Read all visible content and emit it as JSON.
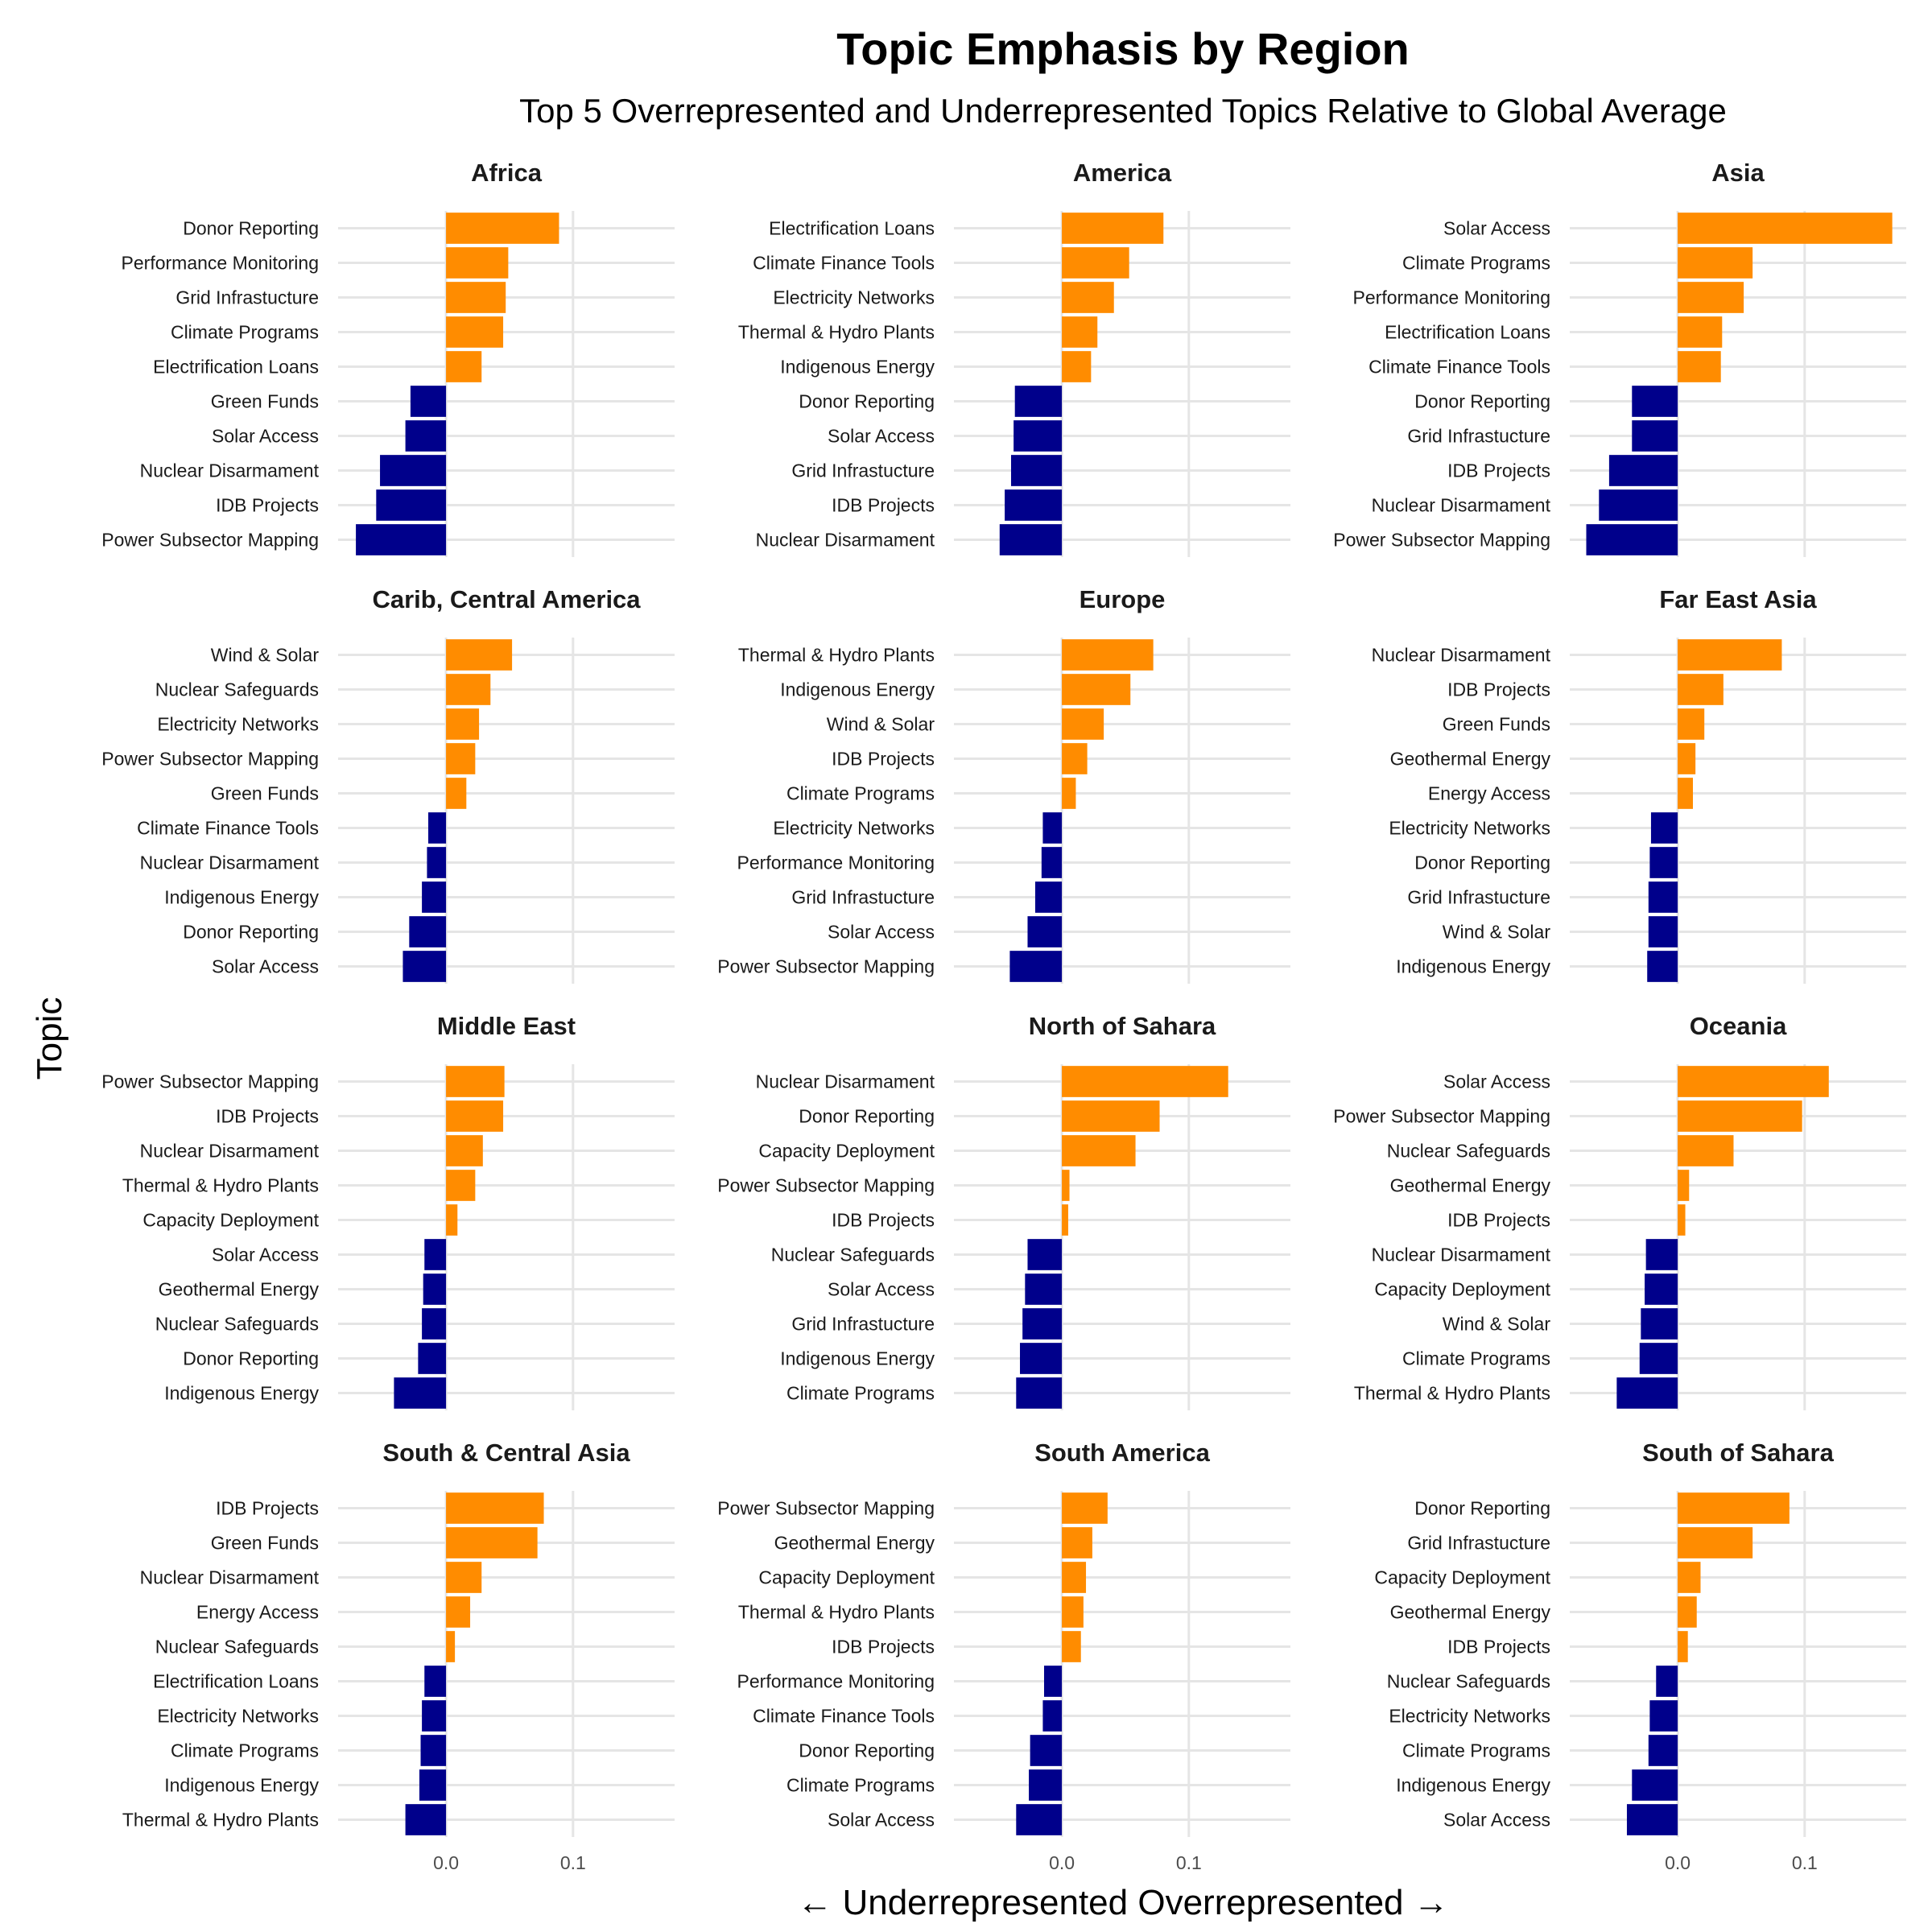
{
  "chart_data": {
    "type": "bar",
    "orientation": "horizontal",
    "title": "Topic Emphasis by Region",
    "subtitle": "Top 5 Overrepresented and Underrepresented Topics Relative to Global Average",
    "xlabel": "← Underrepresented Overrepresented →",
    "ylabel": "Topic",
    "xlim": [
      -0.085,
      0.18
    ],
    "xticks": [
      0.0,
      0.1
    ],
    "xtick_labels": [
      "0.0",
      "0.1"
    ],
    "grid": true,
    "colors": {
      "over": "#FF8C00",
      "under": "#00008B",
      "grid": "#E5E5E5"
    },
    "panels": [
      {
        "region": "Africa",
        "topics": [
          "Donor Reporting",
          "Performance Monitoring",
          "Grid Infrastucture",
          "Climate Programs",
          "Electrification Loans",
          "Green Funds",
          "Solar Access",
          "Nuclear Disarmament",
          "IDB Projects",
          "Power Subsector Mapping"
        ],
        "values": [
          0.089,
          0.049,
          0.047,
          0.045,
          0.028,
          -0.028,
          -0.032,
          -0.052,
          -0.055,
          -0.071
        ]
      },
      {
        "region": "America",
        "topics": [
          "Electrification Loans",
          "Climate Finance Tools",
          "Electricity Networks",
          "Thermal & Hydro Plants",
          "Indigenous Energy",
          "Donor Reporting",
          "Solar Access",
          "Grid Infrastucture",
          "IDB Projects",
          "Nuclear Disarmament"
        ],
        "values": [
          0.08,
          0.053,
          0.041,
          0.028,
          0.023,
          -0.037,
          -0.038,
          -0.04,
          -0.045,
          -0.049
        ]
      },
      {
        "region": "Asia",
        "topics": [
          "Solar Access",
          "Climate Programs",
          "Performance Monitoring",
          "Electrification Loans",
          "Climate Finance Tools",
          "Donor Reporting",
          "Grid Infrastucture",
          "IDB Projects",
          "Nuclear Disarmament",
          "Power Subsector Mapping"
        ],
        "values": [
          0.169,
          0.059,
          0.052,
          0.035,
          0.034,
          -0.036,
          -0.036,
          -0.054,
          -0.062,
          -0.072
        ]
      },
      {
        "region": "Carib, Central America",
        "topics": [
          "Wind & Solar",
          "Nuclear Safeguards",
          "Electricity Networks",
          "Power Subsector Mapping",
          "Green Funds",
          "Climate Finance Tools",
          "Nuclear Disarmament",
          "Indigenous Energy",
          "Donor Reporting",
          "Solar Access"
        ],
        "values": [
          0.052,
          0.035,
          0.026,
          0.023,
          0.016,
          -0.014,
          -0.015,
          -0.019,
          -0.029,
          -0.034
        ]
      },
      {
        "region": "Europe",
        "topics": [
          "Thermal & Hydro Plants",
          "Indigenous Energy",
          "Wind & Solar",
          "IDB Projects",
          "Climate Programs",
          "Electricity Networks",
          "Performance Monitoring",
          "Grid Infrastucture",
          "Solar Access",
          "Power Subsector Mapping"
        ],
        "values": [
          0.072,
          0.054,
          0.033,
          0.02,
          0.011,
          -0.015,
          -0.016,
          -0.021,
          -0.027,
          -0.041
        ]
      },
      {
        "region": "Far East Asia",
        "topics": [
          "Nuclear Disarmament",
          "IDB Projects",
          "Green Funds",
          "Geothermal Energy",
          "Energy Access",
          "Electricity Networks",
          "Donor Reporting",
          "Grid Infrastucture",
          "Wind & Solar",
          "Indigenous Energy"
        ],
        "values": [
          0.082,
          0.036,
          0.021,
          0.014,
          0.012,
          -0.021,
          -0.022,
          -0.023,
          -0.023,
          -0.024
        ]
      },
      {
        "region": "Middle East",
        "topics": [
          "Power Subsector Mapping",
          "IDB Projects",
          "Nuclear Disarmament",
          "Thermal & Hydro Plants",
          "Capacity Deployment",
          "Solar Access",
          "Geothermal Energy",
          "Nuclear Safeguards",
          "Donor Reporting",
          "Indigenous Energy"
        ],
        "values": [
          0.046,
          0.045,
          0.029,
          0.023,
          0.009,
          -0.017,
          -0.018,
          -0.019,
          -0.022,
          -0.041
        ]
      },
      {
        "region": "North of Sahara",
        "topics": [
          "Nuclear Disarmament",
          "Donor Reporting",
          "Capacity Deployment",
          "Power Subsector Mapping",
          "IDB Projects",
          "Nuclear Safeguards",
          "Solar Access",
          "Grid Infrastucture",
          "Indigenous Energy",
          "Climate Programs"
        ],
        "values": [
          0.131,
          0.077,
          0.058,
          0.006,
          0.005,
          -0.027,
          -0.029,
          -0.031,
          -0.033,
          -0.036
        ]
      },
      {
        "region": "Oceania",
        "topics": [
          "Solar Access",
          "Power Subsector Mapping",
          "Nuclear Safeguards",
          "Geothermal Energy",
          "IDB Projects",
          "Nuclear Disarmament",
          "Capacity Deployment",
          "Wind & Solar",
          "Climate Programs",
          "Thermal & Hydro Plants"
        ],
        "values": [
          0.119,
          0.098,
          0.044,
          0.009,
          0.006,
          -0.025,
          -0.026,
          -0.029,
          -0.03,
          -0.048
        ]
      },
      {
        "region": "South & Central Asia",
        "topics": [
          "IDB Projects",
          "Green Funds",
          "Nuclear Disarmament",
          "Energy Access",
          "Nuclear Safeguards",
          "Electrification Loans",
          "Electricity Networks",
          "Climate Programs",
          "Indigenous Energy",
          "Thermal & Hydro Plants"
        ],
        "values": [
          0.077,
          0.072,
          0.028,
          0.019,
          0.007,
          -0.017,
          -0.019,
          -0.02,
          -0.021,
          -0.032
        ]
      },
      {
        "region": "South America",
        "topics": [
          "Power Subsector Mapping",
          "Geothermal Energy",
          "Capacity Deployment",
          "Thermal & Hydro Plants",
          "IDB Projects",
          "Performance Monitoring",
          "Climate Finance Tools",
          "Donor Reporting",
          "Climate Programs",
          "Solar Access"
        ],
        "values": [
          0.036,
          0.024,
          0.019,
          0.017,
          0.015,
          -0.014,
          -0.015,
          -0.025,
          -0.026,
          -0.036
        ]
      },
      {
        "region": "South of Sahara",
        "topics": [
          "Donor Reporting",
          "Grid Infrastucture",
          "Capacity Deployment",
          "Geothermal Energy",
          "IDB Projects",
          "Nuclear Safeguards",
          "Electricity Networks",
          "Climate Programs",
          "Indigenous Energy",
          "Solar Access"
        ],
        "values": [
          0.088,
          0.059,
          0.018,
          0.015,
          0.008,
          -0.017,
          -0.022,
          -0.023,
          -0.036,
          -0.04
        ]
      }
    ]
  }
}
